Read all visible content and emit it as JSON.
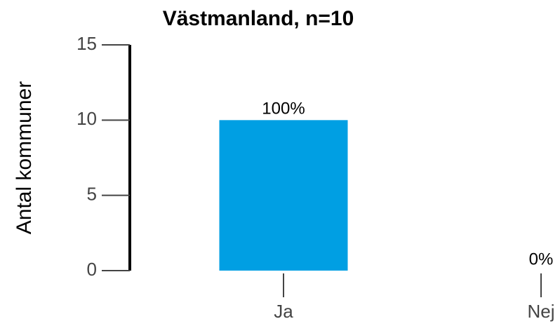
{
  "chart_data": {
    "type": "bar",
    "title": "Västmanland, n=10",
    "ylabel": "Antal kommuner",
    "categories": [
      "Ja",
      "Nej"
    ],
    "values": [
      10,
      0
    ],
    "value_labels": [
      "100%",
      "0%"
    ],
    "color": "#009fe3",
    "ylim": [
      0,
      15
    ],
    "yticks": [
      0,
      5,
      10,
      15
    ],
    "grid": false
  }
}
